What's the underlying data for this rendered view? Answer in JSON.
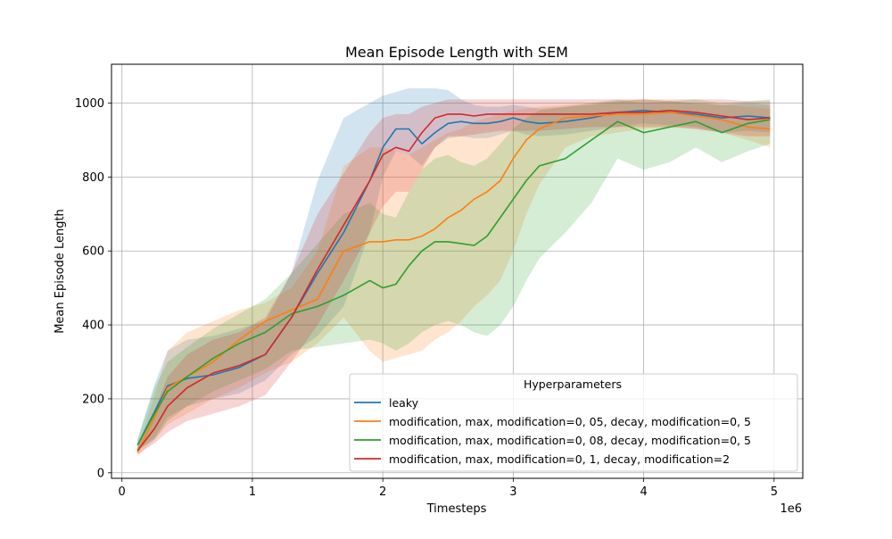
{
  "chart_data": {
    "type": "line",
    "title": "Mean Episode Length with SEM",
    "xlabel": "Timesteps",
    "ylabel": "Mean Episode Length",
    "x_offset_label": "1e6",
    "xlim": [
      -0.08,
      5.22
    ],
    "ylim": [
      -15,
      1105
    ],
    "x_ticks": [
      0,
      1,
      2,
      3,
      4,
      5
    ],
    "x_tick_labels": [
      "0",
      "1",
      "2",
      "3",
      "4",
      "5"
    ],
    "y_ticks": [
      0,
      200,
      400,
      600,
      800,
      1000
    ],
    "y_tick_labels": [
      "0",
      "200",
      "400",
      "600",
      "800",
      "1000"
    ],
    "grid": true,
    "legend": {
      "title": "Hyperparameters",
      "placement": "lower-right"
    },
    "x": [
      0.12,
      0.25,
      0.35,
      0.5,
      0.7,
      0.9,
      1.1,
      1.3,
      1.5,
      1.7,
      1.9,
      2.0,
      2.1,
      2.2,
      2.3,
      2.4,
      2.5,
      2.6,
      2.7,
      2.8,
      2.9,
      3.0,
      3.1,
      3.2,
      3.4,
      3.6,
      3.8,
      4.0,
      4.2,
      4.4,
      4.6,
      4.8,
      4.97
    ],
    "series": [
      {
        "name": "leaky",
        "color": "#1f77b4",
        "values": [
          75,
          165,
          235,
          255,
          265,
          285,
          320,
          420,
          540,
          650,
          790,
          880,
          930,
          930,
          890,
          920,
          945,
          950,
          945,
          945,
          950,
          960,
          950,
          945,
          950,
          960,
          975,
          980,
          975,
          970,
          960,
          965,
          960
        ],
        "lower": [
          60,
          95,
          150,
          180,
          200,
          215,
          250,
          320,
          370,
          450,
          650,
          800,
          870,
          860,
          830,
          880,
          905,
          910,
          905,
          905,
          915,
          925,
          915,
          910,
          915,
          925,
          935,
          945,
          940,
          935,
          920,
          925,
          920
        ],
        "upper": [
          90,
          240,
          330,
          360,
          370,
          390,
          410,
          540,
          790,
          960,
          1000,
          1020,
          1030,
          1040,
          1040,
          1040,
          1035,
          1010,
          995,
          990,
          990,
          995,
          990,
          985,
          990,
          995,
          1005,
          1010,
          1005,
          1000,
          995,
          1000,
          995
        ]
      },
      {
        "name": "modification, max, modification=0, 05, decay, modification=0, 5",
        "color": "#ff7f0e",
        "values": [
          55,
          150,
          230,
          260,
          300,
          360,
          410,
          440,
          470,
          600,
          625,
          625,
          630,
          630,
          640,
          660,
          690,
          710,
          740,
          760,
          790,
          850,
          900,
          930,
          960,
          965,
          970,
          970,
          975,
          965,
          955,
          935,
          930
        ],
        "lower": [
          45,
          90,
          130,
          160,
          200,
          230,
          270,
          300,
          350,
          420,
          330,
          300,
          310,
          320,
          330,
          360,
          380,
          410,
          450,
          480,
          520,
          600,
          700,
          780,
          880,
          910,
          920,
          930,
          935,
          930,
          920,
          900,
          880
        ],
        "upper": [
          65,
          210,
          330,
          380,
          410,
          440,
          460,
          500,
          600,
          830,
          880,
          880,
          870,
          860,
          880,
          900,
          920,
          930,
          950,
          960,
          970,
          980,
          985,
          990,
          995,
          1000,
          1005,
          1010,
          1005,
          1000,
          995,
          990,
          985
        ]
      },
      {
        "name": "modification, max, modification=0, 08, decay, modification=0, 5",
        "color": "#2ca02c",
        "values": [
          75,
          160,
          220,
          260,
          310,
          350,
          380,
          430,
          450,
          480,
          520,
          500,
          510,
          560,
          600,
          625,
          625,
          620,
          615,
          640,
          690,
          740,
          790,
          830,
          850,
          900,
          950,
          920,
          935,
          950,
          920,
          945,
          955
        ],
        "lower": [
          60,
          90,
          140,
          180,
          220,
          250,
          280,
          330,
          340,
          350,
          360,
          350,
          330,
          350,
          380,
          400,
          410,
          400,
          380,
          370,
          400,
          450,
          520,
          580,
          650,
          730,
          850,
          820,
          840,
          880,
          840,
          870,
          890
        ],
        "upper": [
          90,
          230,
          300,
          340,
          390,
          430,
          470,
          540,
          620,
          700,
          730,
          700,
          690,
          760,
          820,
          850,
          860,
          840,
          830,
          850,
          890,
          930,
          960,
          980,
          990,
          1000,
          1010,
          1000,
          1005,
          1010,
          1000,
          1005,
          1010
        ]
      },
      {
        "name": "modification, max, modification=0, 1, decay, modification=2",
        "color": "#d62728",
        "values": [
          60,
          120,
          180,
          230,
          270,
          290,
          320,
          420,
          550,
          670,
          790,
          860,
          880,
          870,
          920,
          960,
          970,
          970,
          965,
          970,
          970,
          970,
          970,
          970,
          970,
          970,
          975,
          975,
          980,
          975,
          965,
          955,
          960
        ],
        "lower": [
          50,
          80,
          110,
          140,
          160,
          180,
          210,
          300,
          400,
          520,
          650,
          720,
          760,
          760,
          820,
          880,
          910,
          910,
          915,
          920,
          925,
          925,
          925,
          925,
          930,
          935,
          935,
          935,
          935,
          930,
          920,
          910,
          910
        ],
        "upper": [
          70,
          170,
          260,
          320,
          360,
          380,
          420,
          540,
          700,
          810,
          920,
          960,
          970,
          970,
          990,
          1000,
          1010,
          1010,
          1010,
          1010,
          1010,
          1010,
          1010,
          1010,
          1010,
          1010,
          1010,
          1010,
          1010,
          1010,
          1010,
          1005,
          1005
        ]
      }
    ]
  }
}
